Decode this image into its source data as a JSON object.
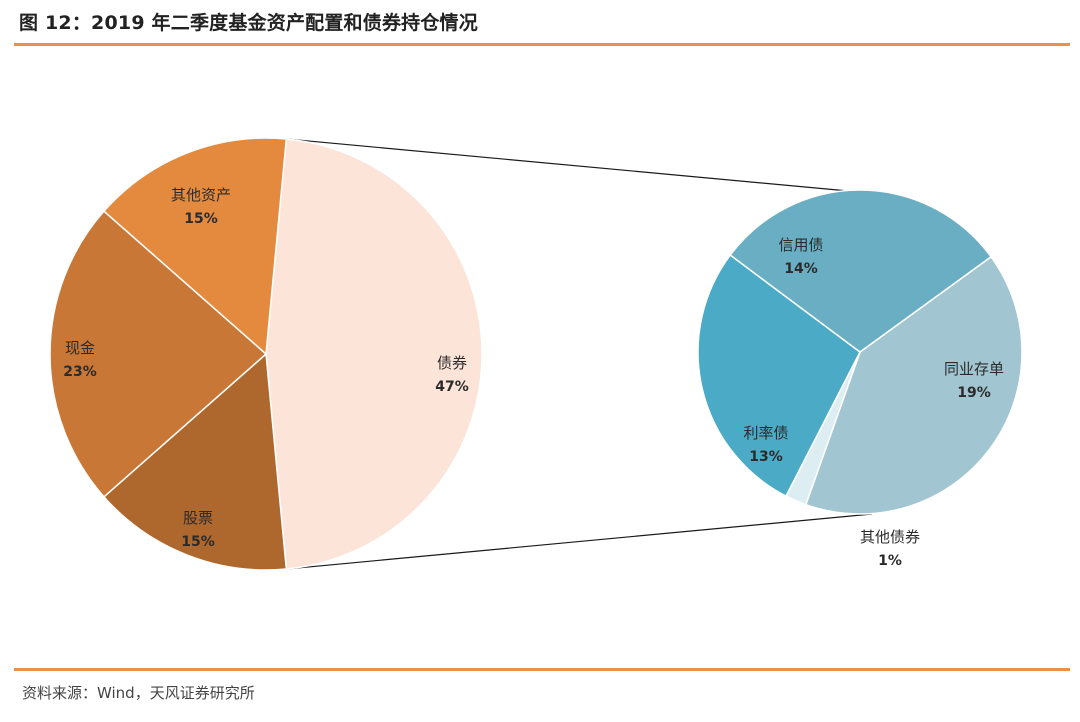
{
  "title": "图 12：2019 年二季度基金资产配置和债券持仓情况",
  "source": "资料来源：Wind，天风证券研究所",
  "chart_data": [
    {
      "type": "pie",
      "name": "",
      "labels": [
        "债券",
        "股票",
        "现金",
        "其他资产"
      ],
      "values": [
        47,
        15,
        23,
        15
      ],
      "value_labels": [
        "47%",
        "15%",
        "23%",
        "15%"
      ],
      "colors": [
        "#FCE4D8",
        "#AE672C",
        "#C87736",
        "#E48A3E"
      ]
    },
    {
      "type": "pie",
      "name": "",
      "labels": [
        "同业存单",
        "其他债券",
        "利率债",
        "信用债"
      ],
      "values": [
        19,
        1,
        13,
        14
      ],
      "value_labels": [
        "19%",
        "1%",
        "13%",
        "14%"
      ],
      "colors": [
        "#A1C5D1",
        "#DDEEF3",
        "#4BAAC6",
        "#6AAEC3"
      ]
    }
  ]
}
